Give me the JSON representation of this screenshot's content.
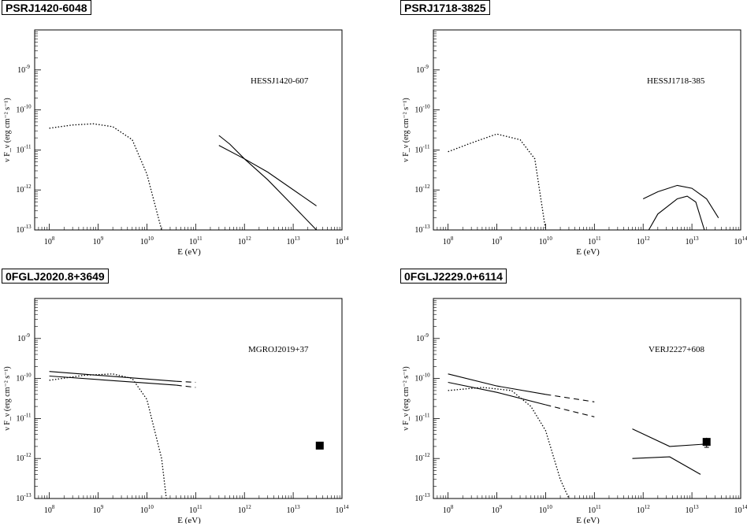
{
  "chart_data": [
    {
      "type": "line",
      "panel_title": "PSRJ1420-6048",
      "source_label": "HESSJ1420-607",
      "xlabel": "E (eV)",
      "ylabel": "ν F_ν (erg cm⁻² s⁻¹)",
      "x_scale": "log",
      "y_scale": "log",
      "xlim": [
        50000000.0,
        100000000000000.0
      ],
      "ylim": [
        1e-13,
        1e-08
      ],
      "x_ticks": [
        100000000.0,
        1000000000.0,
        10000000000.0,
        100000000000.0,
        1000000000000.0,
        10000000000000.0,
        100000000000000.0
      ],
      "y_ticks": [
        1e-13,
        1e-12,
        1e-11,
        1e-10,
        1e-09
      ],
      "series": [
        {
          "style": "dotted",
          "points": [
            [
              100000000.0,
              3.5e-11
            ],
            [
              300000000.0,
              4.2e-11
            ],
            [
              800000000.0,
              4.5e-11
            ],
            [
              2000000000.0,
              3.8e-11
            ],
            [
              5000000000.0,
              1.8e-11
            ],
            [
              10000000000.0,
              2.5e-12
            ],
            [
              20000000000.0,
              1e-13
            ]
          ]
        },
        {
          "style": "solid",
          "points": [
            [
              300000000000.0,
              2.3e-11
            ],
            [
              500000000000.0,
              1.4e-11
            ],
            [
              1000000000000.0,
              6e-12
            ],
            [
              3000000000000.0,
              1.8e-12
            ],
            [
              10000000000000.0,
              4e-13
            ],
            [
              30000000000000.0,
              1e-13
            ]
          ]
        },
        {
          "style": "solid",
          "points": [
            [
              300000000000.0,
              1.3e-11
            ],
            [
              1000000000000.0,
              6e-12
            ],
            [
              3000000000000.0,
              2.8e-12
            ],
            [
              30000000000000.0,
              4e-13
            ]
          ]
        }
      ],
      "markers": []
    },
    {
      "type": "line",
      "panel_title": "PSRJ1718-3825",
      "source_label": "HESSJ1718-385",
      "xlabel": "E (eV)",
      "ylabel": "ν F_ν (erg cm⁻² s⁻¹)",
      "x_scale": "log",
      "y_scale": "log",
      "xlim": [
        50000000.0,
        100000000000000.0
      ],
      "ylim": [
        1e-13,
        1e-08
      ],
      "x_ticks": [
        100000000.0,
        1000000000.0,
        10000000000.0,
        100000000000.0,
        1000000000000.0,
        10000000000000.0,
        100000000000000.0
      ],
      "y_ticks": [
        1e-13,
        1e-12,
        1e-11,
        1e-10,
        1e-09
      ],
      "series": [
        {
          "style": "dotted",
          "points": [
            [
              100000000.0,
              9e-12
            ],
            [
              300000000.0,
              1.5e-11
            ],
            [
              1000000000.0,
              2.5e-11
            ],
            [
              3000000000.0,
              1.8e-11
            ],
            [
              6000000000.0,
              6e-12
            ],
            [
              10000000000.0,
              1e-13
            ]
          ]
        },
        {
          "style": "solid",
          "points": [
            [
              1000000000000.0,
              6e-13
            ],
            [
              2000000000000.0,
              9e-13
            ],
            [
              5000000000000.0,
              1.3e-12
            ],
            [
              10000000000000.0,
              1.1e-12
            ],
            [
              20000000000000.0,
              6e-13
            ],
            [
              35000000000000.0,
              2e-13
            ]
          ]
        },
        {
          "style": "solid",
          "points": [
            [
              1300000000000.0,
              1e-13
            ],
            [
              2000000000000.0,
              2.5e-13
            ],
            [
              5000000000000.0,
              6e-13
            ],
            [
              8000000000000.0,
              7e-13
            ],
            [
              12000000000000.0,
              5e-13
            ],
            [
              18000000000000.0,
              1e-13
            ]
          ]
        }
      ],
      "markers": []
    },
    {
      "type": "line",
      "panel_title": "0FGLJ2020.8+3649",
      "source_label": "MGROJ2019+37",
      "xlabel": "E (eV)",
      "ylabel": "ν F_ν (erg cm⁻² s⁻¹)",
      "x_scale": "log",
      "y_scale": "log",
      "xlim": [
        50000000.0,
        100000000000000.0
      ],
      "ylim": [
        1e-13,
        1e-08
      ],
      "x_ticks": [
        100000000.0,
        1000000000.0,
        10000000000.0,
        100000000000.0,
        1000000000000.0,
        10000000000000.0,
        100000000000000.0
      ],
      "y_ticks": [
        1e-13,
        1e-12,
        1e-11,
        1e-10,
        1e-09
      ],
      "series": [
        {
          "style": "solid",
          "points": [
            [
              100000000.0,
              1.5e-10
            ],
            [
              40000000000.0,
              8.5e-11
            ]
          ]
        },
        {
          "style": "solid",
          "points": [
            [
              100000000.0,
              1.15e-10
            ],
            [
              40000000000.0,
              6.8e-11
            ]
          ]
        },
        {
          "style": "dashed",
          "points": [
            [
              40000000000.0,
              8.5e-11
            ],
            [
              100000000000.0,
              8e-11
            ]
          ]
        },
        {
          "style": "dashed",
          "points": [
            [
              40000000000.0,
              6.8e-11
            ],
            [
              100000000000.0,
              6e-11
            ]
          ]
        },
        {
          "style": "dotted",
          "points": [
            [
              100000000.0,
              9e-11
            ],
            [
              500000000.0,
              1.2e-10
            ],
            [
              2000000000.0,
              1.3e-10
            ],
            [
              5000000000.0,
              1e-10
            ],
            [
              10000000000.0,
              3e-11
            ],
            [
              20000000000.0,
              1e-12
            ],
            [
              25000000000.0,
              1e-13
            ]
          ]
        }
      ],
      "markers": [
        {
          "x": 35000000000000.0,
          "y": 2.1e-12
        }
      ]
    },
    {
      "type": "line",
      "panel_title": "0FGLJ2229.0+6114",
      "source_label": "VERJ2227+608",
      "xlabel": "E (eV)",
      "ylabel": "ν F_ν (erg cm⁻² s⁻¹)",
      "x_scale": "log",
      "y_scale": "log",
      "xlim": [
        50000000.0,
        100000000000000.0
      ],
      "ylim": [
        1e-13,
        1e-08
      ],
      "x_ticks": [
        100000000.0,
        1000000000.0,
        10000000000.0,
        100000000000.0,
        1000000000000.0,
        10000000000000.0,
        100000000000000.0
      ],
      "y_ticks": [
        1e-13,
        1e-12,
        1e-11,
        1e-10,
        1e-09
      ],
      "series": [
        {
          "style": "solid",
          "points": [
            [
              100000000.0,
              1.3e-10
            ],
            [
              1000000000.0,
              6.5e-11
            ],
            [
              10000000000.0,
              4e-11
            ]
          ]
        },
        {
          "style": "solid",
          "points": [
            [
              100000000.0,
              8e-11
            ],
            [
              1000000000.0,
              4.5e-11
            ],
            [
              10000000000.0,
              2.2e-11
            ]
          ]
        },
        {
          "style": "dashed",
          "points": [
            [
              10000000000.0,
              4e-11
            ],
            [
              100000000000.0,
              2.6e-11
            ]
          ]
        },
        {
          "style": "dashed",
          "points": [
            [
              10000000000.0,
              2.2e-11
            ],
            [
              100000000000.0,
              1.1e-11
            ]
          ]
        },
        {
          "style": "dotted",
          "points": [
            [
              100000000.0,
              5e-11
            ],
            [
              500000000.0,
              6e-11
            ],
            [
              2000000000.0,
              5e-11
            ],
            [
              5000000000.0,
              2e-11
            ],
            [
              10000000000.0,
              5e-12
            ],
            [
              20000000000.0,
              3e-13
            ],
            [
              30000000000.0,
              1e-13
            ]
          ]
        },
        {
          "style": "solid",
          "points": [
            [
              600000000000.0,
              5.5e-12
            ],
            [
              3500000000000.0,
              2e-12
            ],
            [
              20000000000000.0,
              2.3e-12
            ]
          ]
        },
        {
          "style": "solid",
          "points": [
            [
              600000000000.0,
              1e-12
            ],
            [
              3500000000000.0,
              1.1e-12
            ],
            [
              15000000000000.0,
              4e-13
            ]
          ]
        }
      ],
      "markers": [
        {
          "x": 20000000000000.0,
          "y": 2.6e-12,
          "err_low": 1.9e-12,
          "err_high": 3.3e-12
        }
      ]
    }
  ]
}
